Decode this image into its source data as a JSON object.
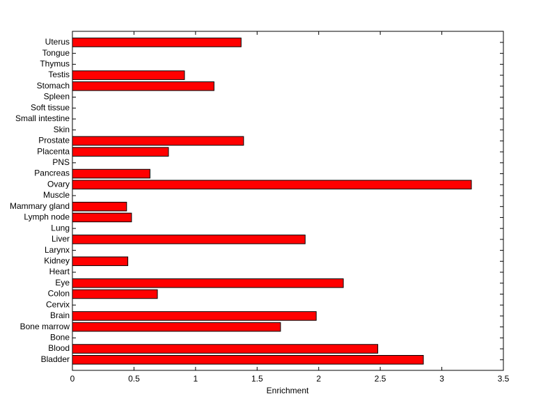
{
  "chart_data": {
    "type": "barh",
    "categories": [
      "Bladder",
      "Blood",
      "Bone",
      "Bone marrow",
      "Brain",
      "Cervix",
      "Colon",
      "Eye",
      "Heart",
      "Kidney",
      "Larynx",
      "Liver",
      "Lung",
      "Lymph node",
      "Mammary gland",
      "Muscle",
      "Ovary",
      "Pancreas",
      "PNS",
      "Placenta",
      "Prostate",
      "Skin",
      "Small intestine",
      "Soft tissue",
      "Spleen",
      "Stomach",
      "Testis",
      "Thymus",
      "Tongue",
      "Uterus"
    ],
    "values": [
      2.85,
      2.48,
      0,
      1.69,
      1.98,
      0,
      0.69,
      2.2,
      0,
      0.45,
      0,
      1.89,
      0,
      0.48,
      0.44,
      0,
      3.24,
      0.63,
      0,
      0.78,
      1.39,
      0,
      0,
      0,
      0,
      1.15,
      0.91,
      0,
      0,
      1.37
    ],
    "color": "#ff0000",
    "x_label": "Enrichment",
    "xlim": [
      0,
      3.5
    ],
    "xticks": [
      0,
      0.5,
      1,
      1.5,
      2,
      2.5,
      3,
      3.5
    ],
    "grid": false
  }
}
